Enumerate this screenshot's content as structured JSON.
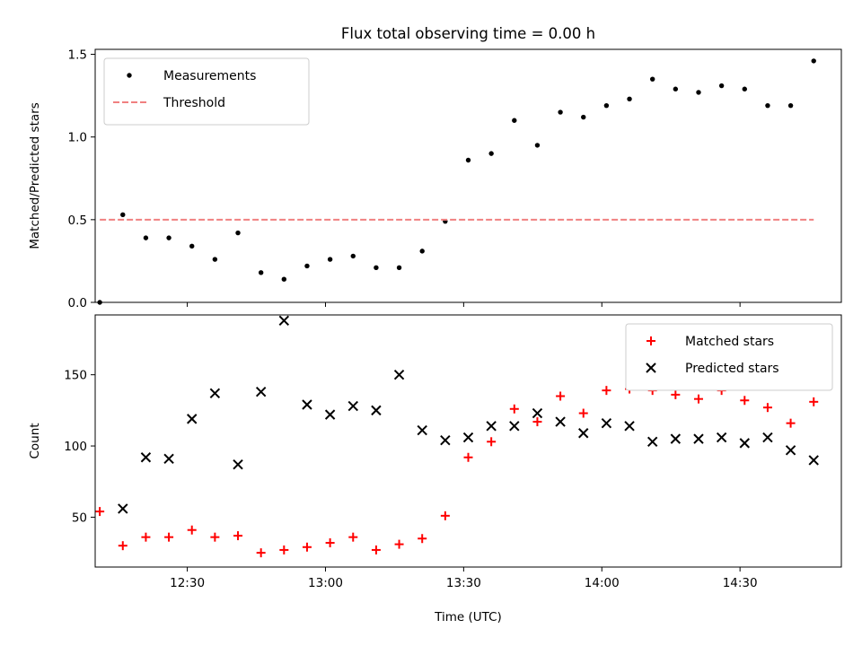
{
  "chart_data": [
    {
      "type": "scatter",
      "title": "Flux total observing time = 0.00 h",
      "ylabel": "Matched/Predicted stars",
      "xlabel": "",
      "ylim": [
        0,
        1.53
      ],
      "xlim": [
        "12:10",
        "14:52"
      ],
      "yticks": [
        0.0,
        0.5,
        1.0,
        1.5
      ],
      "ytick_labels": [
        "0.0",
        "0.5",
        "1.0",
        "1.5"
      ],
      "xticks": [
        "12:30",
        "13:00",
        "13:30",
        "14:00",
        "14:30"
      ],
      "legend_position": "upper-left",
      "grid": false,
      "series": [
        {
          "name": "Measurements",
          "marker": "dot",
          "color": "#000000",
          "x": [
            "12:11",
            "12:16",
            "12:21",
            "12:26",
            "12:31",
            "12:36",
            "12:41",
            "12:46",
            "12:51",
            "12:56",
            "13:01",
            "13:06",
            "13:11",
            "13:16",
            "13:21",
            "13:26",
            "13:31",
            "13:36",
            "13:41",
            "13:46",
            "13:51",
            "13:56",
            "14:01",
            "14:06",
            "14:11",
            "14:16",
            "14:21",
            "14:26",
            "14:31",
            "14:36",
            "14:41",
            "14:46"
          ],
          "y": [
            0.0,
            0.53,
            0.39,
            0.39,
            0.34,
            0.26,
            0.42,
            0.18,
            0.14,
            0.22,
            0.26,
            0.28,
            0.21,
            0.21,
            0.31,
            0.49,
            0.86,
            0.9,
            1.1,
            0.95,
            1.15,
            1.12,
            1.19,
            1.23,
            1.35,
            1.29,
            1.27,
            1.31,
            1.29,
            1.19,
            1.19,
            1.46
          ]
        },
        {
          "name": "Threshold",
          "marker": "dashed-line",
          "color": "#f08080",
          "x": [
            "12:11",
            "14:46"
          ],
          "y": [
            0.5,
            0.5
          ]
        }
      ]
    },
    {
      "type": "scatter",
      "title": "",
      "ylabel": "Count",
      "xlabel": "Time (UTC)",
      "ylim": [
        15,
        192
      ],
      "xlim": [
        "12:10",
        "14:52"
      ],
      "yticks": [
        50,
        100,
        150
      ],
      "ytick_labels": [
        "50",
        "100",
        "150"
      ],
      "xticks": [
        "12:30",
        "13:00",
        "13:30",
        "14:00",
        "14:30"
      ],
      "legend_position": "upper-right",
      "grid": false,
      "series": [
        {
          "name": "Matched stars",
          "marker": "plus",
          "color": "#ff0000",
          "x": [
            "12:11",
            "12:16",
            "12:21",
            "12:26",
            "12:31",
            "12:36",
            "12:41",
            "12:46",
            "12:51",
            "12:56",
            "13:01",
            "13:06",
            "13:11",
            "13:16",
            "13:21",
            "13:26",
            "13:31",
            "13:36",
            "13:41",
            "13:46",
            "13:51",
            "13:56",
            "14:01",
            "14:06",
            "14:11",
            "14:16",
            "14:21",
            "14:26",
            "14:31",
            "14:36",
            "14:41",
            "14:46"
          ],
          "y": [
            54,
            30,
            36,
            36,
            41,
            36,
            37,
            25,
            27,
            29,
            32,
            36,
            27,
            31,
            35,
            51,
            92,
            103,
            126,
            117,
            135,
            123,
            139,
            140,
            139,
            136,
            133,
            139,
            132,
            127,
            116,
            131
          ]
        },
        {
          "name": "Predicted stars",
          "marker": "x",
          "color": "#000000",
          "x": [
            "12:11",
            "12:16",
            "12:21",
            "12:26",
            "12:31",
            "12:36",
            "12:41",
            "12:46",
            "12:51",
            "12:56",
            "13:01",
            "13:06",
            "13:11",
            "13:16",
            "13:21",
            "13:26",
            "13:31",
            "13:36",
            "13:41",
            "13:46",
            "13:51",
            "13:56",
            "14:01",
            "14:06",
            "14:11",
            "14:16",
            "14:21",
            "14:26",
            "14:31",
            "14:36",
            "14:41",
            "14:46"
          ],
          "y": [
            null,
            56,
            92,
            91,
            119,
            137,
            87,
            138,
            188,
            129,
            122,
            128,
            125,
            150,
            111,
            104,
            106,
            114,
            114,
            123,
            117,
            109,
            116,
            114,
            103,
            105,
            105,
            106,
            102,
            106,
            97,
            90
          ]
        }
      ]
    }
  ]
}
